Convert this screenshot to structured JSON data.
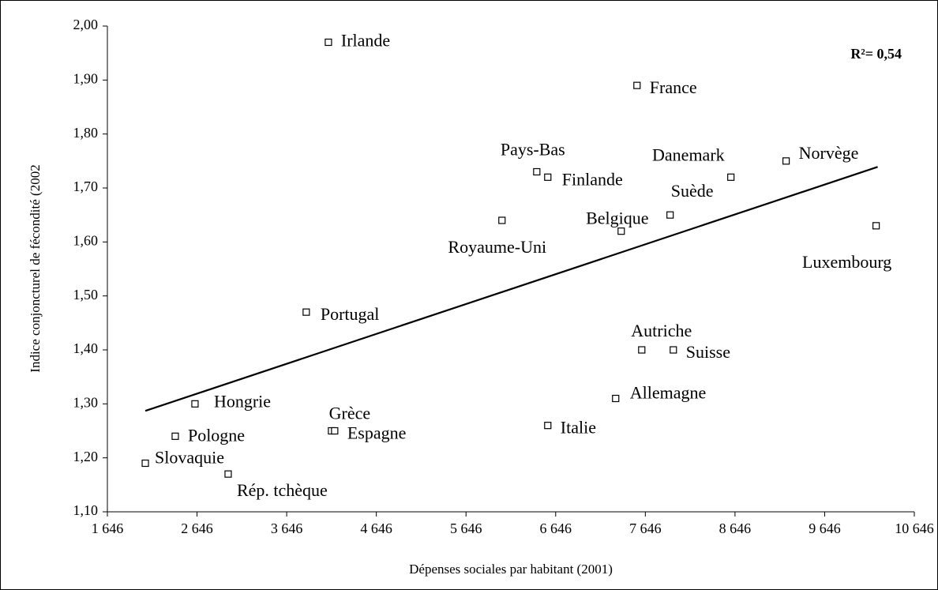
{
  "chart_data": {
    "type": "scatter",
    "xlabel": "Dépenses sociales par habitant (2001)",
    "ylabel": "Indice conjoncturel de fécondité (2002",
    "annotation": "R²= 0,54",
    "color": "#000000",
    "points": {
      "labels": [
        "Irlande",
        "France",
        "Pays-Bas",
        "Finlande",
        "Danemark",
        "Norvège",
        "Suède",
        "Belgique",
        "Royaume-Uni",
        "Luxembourg",
        "Portugal",
        "Autriche",
        "Suisse",
        "Allemagne",
        "Italie",
        "Grèce",
        "Espagne",
        "Hongrie",
        "Pologne",
        "Slovaquie",
        "Rép. tchèque"
      ],
      "x": [
        4111,
        7553,
        6435,
        6558,
        8600,
        9216,
        7922,
        7377,
        6047,
        10220,
        3864,
        7606,
        7958,
        7315,
        6558,
        4146,
        4181,
        2623,
        2403,
        2069,
        2993
      ],
      "y": [
        1.97,
        1.89,
        1.73,
        1.72,
        1.72,
        1.75,
        1.65,
        1.62,
        1.64,
        1.63,
        1.47,
        1.4,
        1.4,
        1.31,
        1.26,
        1.25,
        1.25,
        1.3,
        1.24,
        1.19,
        1.17
      ]
    },
    "trendline": {
      "x": [
        2069,
        10237
      ],
      "y": [
        1.287,
        1.739
      ]
    },
    "xlim": [
      1646,
      10646
    ],
    "ylim": [
      1.1,
      2.0
    ],
    "xticks": [
      {
        "value": 1646,
        "label": "1 646"
      },
      {
        "value": 2646,
        "label": "2 646"
      },
      {
        "value": 3646,
        "label": "3 646"
      },
      {
        "value": 4646,
        "label": "4 646"
      },
      {
        "value": 5646,
        "label": "5 646"
      },
      {
        "value": 6646,
        "label": "6 646"
      },
      {
        "value": 7646,
        "label": "7 646"
      },
      {
        "value": 8646,
        "label": "8 646"
      },
      {
        "value": 9646,
        "label": "9 646"
      },
      {
        "value": 10646,
        "label": "10 646"
      }
    ],
    "yticks": [
      {
        "value": 1.1,
        "label": "1,10"
      },
      {
        "value": 1.2,
        "label": "1,20"
      },
      {
        "value": 1.3,
        "label": "1,30"
      },
      {
        "value": 1.4,
        "label": "1,40"
      },
      {
        "value": 1.5,
        "label": "1,50"
      },
      {
        "value": 1.6,
        "label": "1,60"
      },
      {
        "value": 1.7,
        "label": "1,70"
      },
      {
        "value": 1.8,
        "label": "1,80"
      },
      {
        "value": 1.9,
        "label": "1,90"
      },
      {
        "value": 2.0,
        "label": "2,00"
      }
    ]
  }
}
